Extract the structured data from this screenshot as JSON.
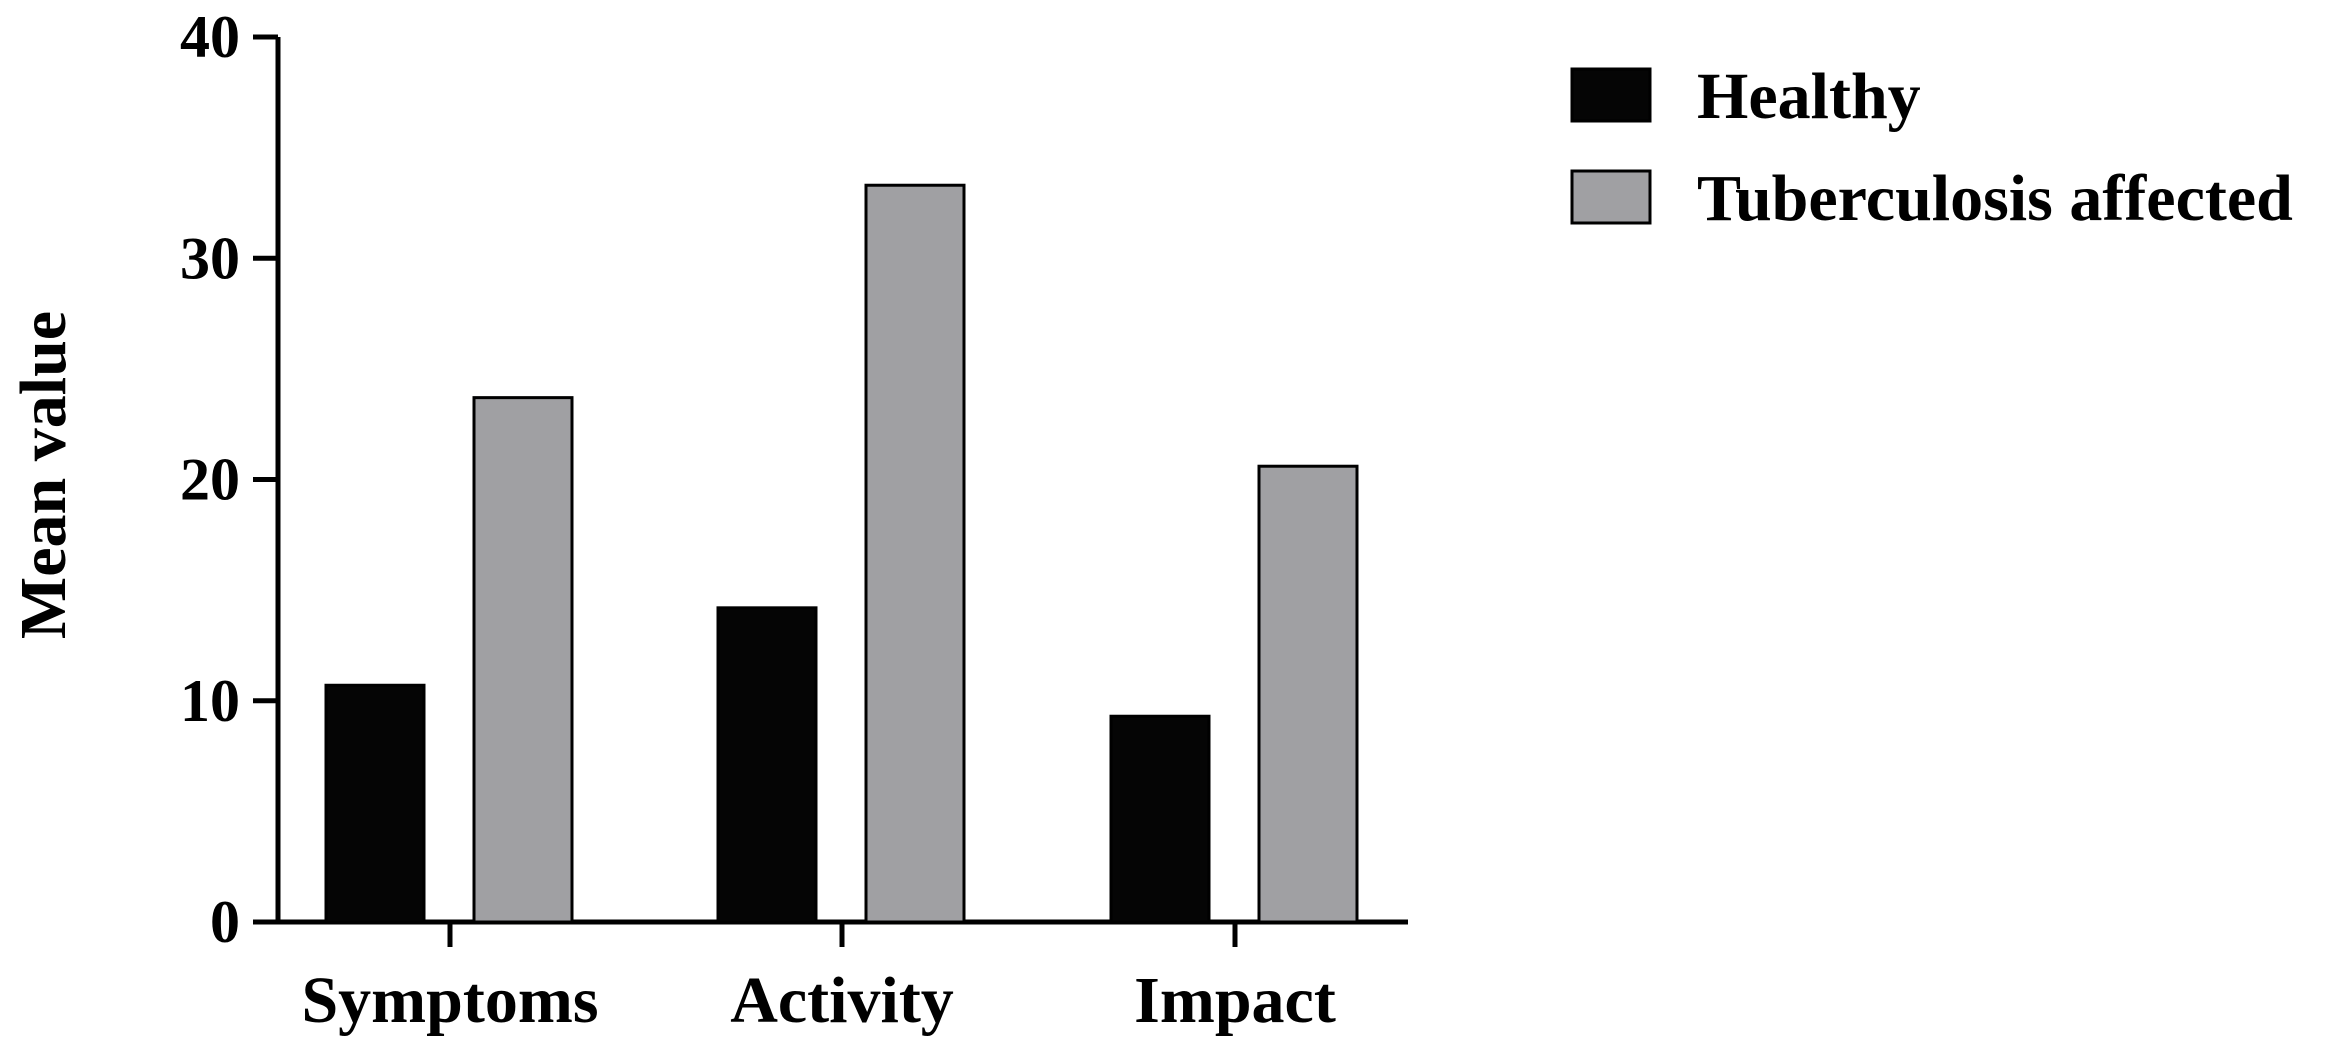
{
  "chart_data": {
    "type": "bar",
    "title": "",
    "xlabel": "",
    "ylabel": "Mean value",
    "ylim": [
      0,
      40
    ],
    "yticks": [
      0,
      10,
      20,
      30,
      40
    ],
    "categories": [
      "Symptoms",
      "Activity",
      "Impact"
    ],
    "series": [
      {
        "name": "Healthy",
        "color": "#050505",
        "values": [
          10.7,
          14.2,
          9.3
        ]
      },
      {
        "name": "Tuberculosis affected",
        "color": "#a0a0a3",
        "values": [
          23.7,
          33.3,
          20.6
        ]
      }
    ],
    "grid": false,
    "legend_position": "top-right"
  }
}
